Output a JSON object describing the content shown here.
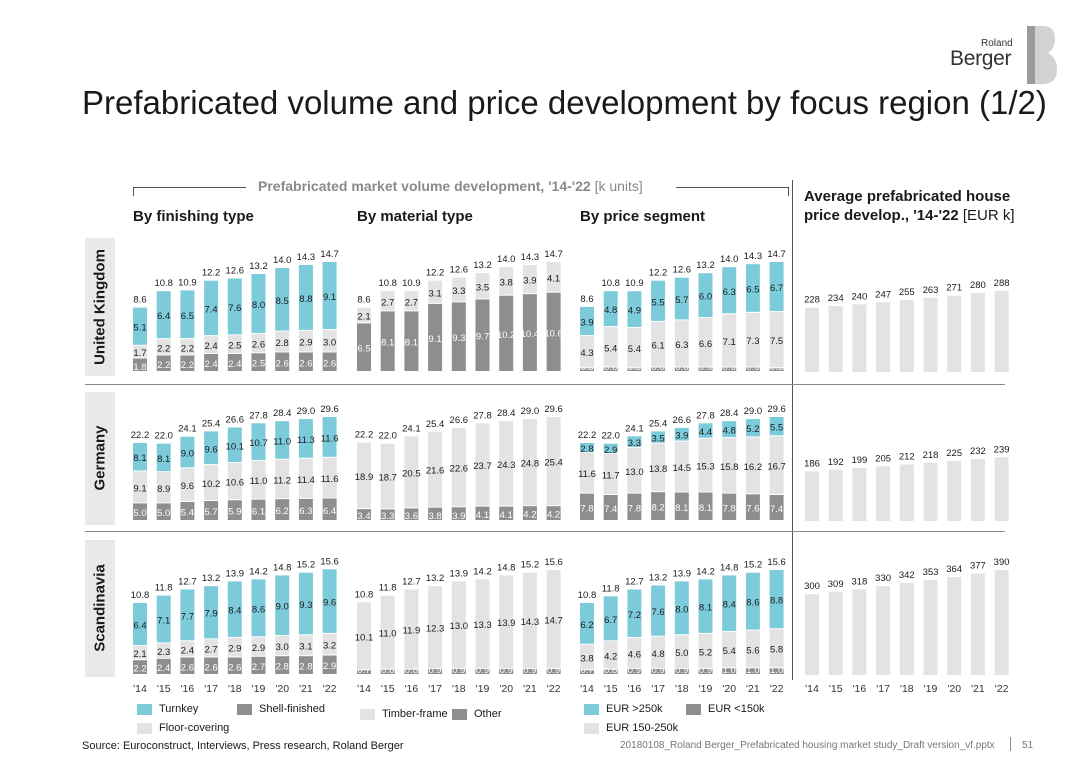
{
  "logo": {
    "top": "Roland",
    "bottom": "Berger"
  },
  "title": "Prefabricated volume and price development by focus region (1/2)",
  "volume_header": {
    "title": "Prefabricated market volume development, '14-'22",
    "unit": "[k units]"
  },
  "price_header": {
    "line1": "Average prefabricated house",
    "line2": "price develop., '14-'22",
    "unit": "[EUR k]"
  },
  "subheaders": {
    "finishing": "By finishing type",
    "material": "By material type",
    "price_segment": "By price segment"
  },
  "regions": [
    "United Kingdom",
    "Germany",
    "Scandinavia"
  ],
  "years": [
    "'14",
    "'15",
    "'16",
    "'17",
    "'18",
    "'19",
    "'20",
    "'21",
    "'22"
  ],
  "colors": {
    "cyan": "#7ccbdb",
    "light": "#e3e3e3",
    "dark": "#8e8e8e"
  },
  "legends": {
    "finishing": {
      "turnkey": "Turnkey",
      "shell": "Shell-finished",
      "floor": "Floor-covering"
    },
    "material": {
      "timber": "Timber-frame",
      "other": "Other"
    },
    "segment": {
      "high": "EUR >250k",
      "low": "EUR <150k",
      "mid": "EUR 150-250k"
    }
  },
  "source": "Source: Euroconstruct, Interviews, Press research, Roland Berger",
  "file": "20180108_Roland Berger_Prefabricated housing market study_Draft version_vf.pptx",
  "page": "51",
  "chart_data": [
    {
      "type": "bar",
      "stacked": true,
      "region": "United Kingdom",
      "panel": "By finishing type",
      "ylim": [
        0,
        14.7
      ],
      "categories": [
        "'14",
        "'15",
        "'16",
        "'17",
        "'18",
        "'19",
        "'20",
        "'21",
        "'22"
      ],
      "totals": [
        "8.6",
        "10.8",
        "10.9",
        "12.2",
        "12.6",
        "13.2",
        "14.0",
        "14.3",
        "14.7"
      ],
      "series": [
        {
          "name": "Shell-finished",
          "color": "dark",
          "values": [
            1.8,
            2.2,
            2.2,
            2.4,
            2.4,
            2.5,
            2.6,
            2.6,
            2.6
          ],
          "labels": [
            "1.8",
            "2.2",
            "2.2",
            "2.4",
            "2.4",
            "2.5",
            "2.6",
            "2.6",
            "2.6"
          ]
        },
        {
          "name": "Floor-covering",
          "color": "light",
          "values": [
            1.7,
            2.2,
            2.2,
            2.4,
            2.5,
            2.6,
            2.8,
            2.9,
            3.0
          ],
          "labels": [
            "1.7",
            "2.2",
            "2.2",
            "2.4",
            "2.5",
            "2.6",
            "2.8",
            "2.9",
            "3.0"
          ]
        },
        {
          "name": "Turnkey",
          "color": "cyan",
          "values": [
            5.1,
            6.4,
            6.5,
            7.4,
            7.6,
            8.0,
            8.5,
            8.8,
            9.1
          ],
          "labels": [
            "5.1",
            "6.4",
            "6.5",
            "7.4",
            "7.6",
            "8.0",
            "8.5",
            "8.8",
            "9.1"
          ]
        }
      ]
    },
    {
      "type": "bar",
      "stacked": true,
      "region": "United Kingdom",
      "panel": "By material type",
      "ylim": [
        0,
        14.7
      ],
      "categories": [
        "'14",
        "'15",
        "'16",
        "'17",
        "'18",
        "'19",
        "'20",
        "'21",
        "'22"
      ],
      "totals": [
        "8.6",
        "10.8",
        "10.9",
        "12.2",
        "12.6",
        "13.2",
        "14.0",
        "14.3",
        "14.7"
      ],
      "series": [
        {
          "name": "Other",
          "color": "dark",
          "values": [
            6.5,
            8.1,
            8.1,
            9.1,
            9.3,
            9.7,
            10.2,
            10.4,
            10.6
          ],
          "labels": [
            "6.5",
            "8.1",
            "8.1",
            "9.1",
            "9.3",
            "9.7",
            "10.2",
            "10.4",
            "10.6"
          ]
        },
        {
          "name": "Timber-frame",
          "color": "light",
          "values": [
            2.1,
            2.7,
            2.7,
            3.1,
            3.3,
            3.5,
            3.8,
            3.9,
            4.1
          ],
          "labels": [
            "2.1",
            "2.7",
            "2.7",
            "3.1",
            "3.3",
            "3.5",
            "3.8",
            "3.9",
            "4.1"
          ]
        }
      ]
    },
    {
      "type": "bar",
      "stacked": true,
      "region": "United Kingdom",
      "panel": "By price segment",
      "ylim": [
        0,
        14.7
      ],
      "categories": [
        "'14",
        "'15",
        "'16",
        "'17",
        "'18",
        "'19",
        "'20",
        "'21",
        "'22"
      ],
      "totals": [
        "8.6",
        "10.8",
        "10.9",
        "12.2",
        "12.6",
        "13.2",
        "14.0",
        "14.3",
        "14.7"
      ],
      "series": [
        {
          "name": "EUR <150k",
          "color": "dark",
          "values": [
            0.5,
            0.6,
            0.5,
            0.6,
            0.6,
            0.6,
            0.6,
            0.6,
            0.5
          ],
          "labels": [
            "0.5",
            "0.6",
            "0.5",
            "0.6",
            "0.6",
            "0.6",
            "0.6",
            "0.6",
            "0.5"
          ]
        },
        {
          "name": "EUR 150-250k",
          "color": "light",
          "values": [
            4.3,
            5.4,
            5.4,
            6.1,
            6.3,
            6.6,
            7.1,
            7.3,
            7.5
          ],
          "labels": [
            "4.3",
            "5.4",
            "5.4",
            "6.1",
            "6.3",
            "6.6",
            "7.1",
            "7.3",
            "7.5"
          ]
        },
        {
          "name": "EUR >250k",
          "color": "cyan",
          "values": [
            3.9,
            4.8,
            4.9,
            5.5,
            5.7,
            6.0,
            6.3,
            6.5,
            6.7
          ],
          "labels": [
            "3.9",
            "4.8",
            "4.9",
            "5.5",
            "5.7",
            "6.0",
            "6.3",
            "6.5",
            "6.7"
          ]
        }
      ]
    },
    {
      "type": "bar",
      "region": "United Kingdom",
      "panel": "Average price",
      "ylim": [
        0,
        390
      ],
      "categories": [
        "'14",
        "'15",
        "'16",
        "'17",
        "'18",
        "'19",
        "'20",
        "'21",
        "'22"
      ],
      "values": [
        228,
        234,
        240,
        247,
        255,
        263,
        271,
        280,
        288
      ],
      "labels": [
        "228",
        "234",
        "240",
        "247",
        "255",
        "263",
        "271",
        "280",
        "288"
      ]
    },
    {
      "type": "bar",
      "stacked": true,
      "region": "Germany",
      "panel": "By finishing type",
      "ylim": [
        0,
        29.6
      ],
      "categories": [
        "'14",
        "'15",
        "'16",
        "'17",
        "'18",
        "'19",
        "'20",
        "'21",
        "'22"
      ],
      "totals": [
        "22.2",
        "22.0",
        "24.1",
        "25.4",
        "26.6",
        "27.8",
        "28.4",
        "29.0",
        "29.6"
      ],
      "series": [
        {
          "name": "Shell-finished",
          "color": "dark",
          "values": [
            5.0,
            5.0,
            5.4,
            5.7,
            5.9,
            6.1,
            6.2,
            6.3,
            6.4
          ],
          "labels": [
            "5.0",
            "5.0",
            "5.4",
            "5.7",
            "5.9",
            "6.1",
            "6.2",
            "6.3",
            "6.4"
          ]
        },
        {
          "name": "Floor-covering",
          "color": "light",
          "values": [
            9.1,
            8.9,
            9.6,
            10.2,
            10.6,
            11.0,
            11.2,
            11.4,
            11.6
          ],
          "labels": [
            "9.1",
            "8.9",
            "9.6",
            "10.2",
            "10.6",
            "11.0",
            "11.2",
            "11.4",
            "11.6"
          ]
        },
        {
          "name": "Turnkey",
          "color": "cyan",
          "values": [
            8.1,
            8.1,
            9.0,
            9.6,
            10.1,
            10.7,
            11.0,
            11.3,
            11.6
          ],
          "labels": [
            "8.1",
            "8.1",
            "9.0",
            "9.6",
            "10.1",
            "10.7",
            "11.0",
            "11.3",
            "11.6"
          ]
        }
      ]
    },
    {
      "type": "bar",
      "stacked": true,
      "region": "Germany",
      "panel": "By material type",
      "ylim": [
        0,
        29.6
      ],
      "categories": [
        "'14",
        "'15",
        "'16",
        "'17",
        "'18",
        "'19",
        "'20",
        "'21",
        "'22"
      ],
      "totals": [
        "22.2",
        "22.0",
        "24.1",
        "25.4",
        "26.6",
        "27.8",
        "28.4",
        "29.0",
        "29.6"
      ],
      "series": [
        {
          "name": "Other",
          "color": "dark",
          "values": [
            3.4,
            3.3,
            3.6,
            3.8,
            3.9,
            4.1,
            4.1,
            4.2,
            4.2
          ],
          "labels": [
            "3.4",
            "3.3",
            "3.6",
            "3.8",
            "3.9",
            "4.1",
            "4.1",
            "4.2",
            "4.2"
          ]
        },
        {
          "name": "Timber-frame",
          "color": "light",
          "values": [
            18.9,
            18.7,
            20.5,
            21.6,
            22.6,
            23.7,
            24.3,
            24.8,
            25.4
          ],
          "labels": [
            "18.9",
            "18.7",
            "20.5",
            "21.6",
            "22.6",
            "23.7",
            "24.3",
            "24.8",
            "25.4"
          ]
        }
      ]
    },
    {
      "type": "bar",
      "stacked": true,
      "region": "Germany",
      "panel": "By price segment",
      "ylim": [
        0,
        29.6
      ],
      "categories": [
        "'14",
        "'15",
        "'16",
        "'17",
        "'18",
        "'19",
        "'20",
        "'21",
        "'22"
      ],
      "totals": [
        "22.2",
        "22.0",
        "24.1",
        "25.4",
        "26.6",
        "27.8",
        "28.4",
        "29.0",
        "29.6"
      ],
      "series": [
        {
          "name": "EUR <150k",
          "color": "dark",
          "values": [
            7.8,
            7.4,
            7.8,
            8.2,
            8.1,
            8.1,
            7.8,
            7.6,
            7.4
          ],
          "labels": [
            "7.8",
            "7.4",
            "7.8",
            "8.2",
            "8.1",
            "8.1",
            "7.8",
            "7.6",
            "7.4"
          ]
        },
        {
          "name": "EUR 150-250k",
          "color": "light",
          "values": [
            11.6,
            11.7,
            13.0,
            13.8,
            14.5,
            15.3,
            15.8,
            16.2,
            16.7
          ],
          "labels": [
            "11.6",
            "11.7",
            "13.0",
            "13.8",
            "14.5",
            "15.3",
            "15.8",
            "16.2",
            "16.7"
          ]
        },
        {
          "name": "EUR >250k",
          "color": "cyan",
          "values": [
            2.8,
            2.9,
            3.3,
            3.5,
            3.9,
            4.4,
            4.8,
            5.2,
            5.5
          ],
          "labels": [
            "2.8",
            "2.9",
            "3.3",
            "3.5",
            "3.9",
            "4.4",
            "4.8",
            "5.2",
            "5.5"
          ]
        }
      ]
    },
    {
      "type": "bar",
      "region": "Germany",
      "panel": "Average price",
      "ylim": [
        0,
        390
      ],
      "categories": [
        "'14",
        "'15",
        "'16",
        "'17",
        "'18",
        "'19",
        "'20",
        "'21",
        "'22"
      ],
      "values": [
        186,
        192,
        199,
        205,
        212,
        218,
        225,
        232,
        239
      ],
      "labels": [
        "186",
        "192",
        "199",
        "205",
        "212",
        "218",
        "225",
        "232",
        "239"
      ]
    },
    {
      "type": "bar",
      "stacked": true,
      "region": "Scandinavia",
      "panel": "By finishing type",
      "ylim": [
        0,
        15.6
      ],
      "categories": [
        "'14",
        "'15",
        "'16",
        "'17",
        "'18",
        "'19",
        "'20",
        "'21",
        "'22"
      ],
      "totals": [
        "10.8",
        "11.8",
        "12.7",
        "13.2",
        "13.9",
        "14.2",
        "14.8",
        "15.2",
        "15.6"
      ],
      "series": [
        {
          "name": "Shell-finished",
          "color": "dark",
          "values": [
            2.2,
            2.4,
            2.6,
            2.6,
            2.6,
            2.7,
            2.8,
            2.8,
            2.9
          ],
          "labels": [
            "2.2",
            "2.4",
            "2.6",
            "2.6",
            "2.6",
            "2.7",
            "2.8",
            "2.8",
            "2.9"
          ]
        },
        {
          "name": "Floor-covering",
          "color": "light",
          "values": [
            2.1,
            2.3,
            2.4,
            2.7,
            2.9,
            2.9,
            3.0,
            3.1,
            3.2
          ],
          "labels": [
            "2.1",
            "2.3",
            "2.4",
            "2.7",
            "2.9",
            "2.9",
            "3.0",
            "3.1",
            "3.2"
          ]
        },
        {
          "name": "Turnkey",
          "color": "cyan",
          "values": [
            6.4,
            7.1,
            7.7,
            7.9,
            8.4,
            8.6,
            9.0,
            9.3,
            9.6
          ],
          "labels": [
            "6.4",
            "7.1",
            "7.7",
            "7.9",
            "8.4",
            "8.6",
            "9.0",
            "9.3",
            "9.6"
          ]
        }
      ]
    },
    {
      "type": "bar",
      "stacked": true,
      "region": "Scandinavia",
      "panel": "By material type",
      "ylim": [
        0,
        15.6
      ],
      "categories": [
        "'14",
        "'15",
        "'16",
        "'17",
        "'18",
        "'19",
        "'20",
        "'21",
        "'22"
      ],
      "totals": [
        "10.8",
        "11.8",
        "12.7",
        "13.2",
        "13.9",
        "14.2",
        "14.8",
        "15.2",
        "15.6"
      ],
      "series": [
        {
          "name": "Other",
          "color": "dark",
          "values": [
            0.7,
            0.8,
            0.8,
            0.9,
            0.9,
            0.9,
            0.9,
            0.9,
            0.9
          ],
          "labels": [
            "0.7",
            "0.8",
            "0.8",
            "0.9",
            "0.9",
            "0.9",
            "0.9",
            "0.9",
            "0.9"
          ]
        },
        {
          "name": "Timber-frame",
          "color": "light",
          "values": [
            10.1,
            11.0,
            11.9,
            12.3,
            13.0,
            13.3,
            13.9,
            14.3,
            14.7
          ],
          "labels": [
            "10.1",
            "11.0",
            "11.9",
            "12.3",
            "13.0",
            "13.3",
            "13.9",
            "14.3",
            "14.7"
          ]
        }
      ]
    },
    {
      "type": "bar",
      "stacked": true,
      "region": "Scandinavia",
      "panel": "By price segment",
      "ylim": [
        0,
        15.6
      ],
      "categories": [
        "'14",
        "'15",
        "'16",
        "'17",
        "'18",
        "'19",
        "'20",
        "'21",
        "'22"
      ],
      "totals": [
        "10.8",
        "11.8",
        "12.7",
        "13.2",
        "13.9",
        "14.2",
        "14.8",
        "15.2",
        "15.6"
      ],
      "series": [
        {
          "name": "EUR <150k",
          "color": "dark",
          "values": [
            0.7,
            0.8,
            0.9,
            0.9,
            0.9,
            0.9,
            1.0,
            1.0,
            1.0
          ],
          "labels": [
            "0.7",
            "0.8",
            "0.9",
            "0.9",
            "0.9",
            "0.9",
            "1.0",
            "1.0",
            "1.0"
          ]
        },
        {
          "name": "EUR 150-250k",
          "color": "light",
          "values": [
            3.8,
            4.2,
            4.6,
            4.8,
            5.0,
            5.2,
            5.4,
            5.6,
            5.8
          ],
          "labels": [
            "3.8",
            "4.2",
            "4.6",
            "4.8",
            "5.0",
            "5.2",
            "5.4",
            "5.6",
            "5.8"
          ]
        },
        {
          "name": "EUR >250k",
          "color": "cyan",
          "values": [
            6.2,
            6.7,
            7.2,
            7.6,
            8.0,
            8.1,
            8.4,
            8.6,
            8.8
          ],
          "labels": [
            "6.2",
            "6.7",
            "7.2",
            "7.6",
            "8.0",
            "8.1",
            "8.4",
            "8.6",
            "8.8"
          ]
        }
      ]
    },
    {
      "type": "bar",
      "region": "Scandinavia",
      "panel": "Average price",
      "ylim": [
        0,
        390
      ],
      "categories": [
        "'14",
        "'15",
        "'16",
        "'17",
        "'18",
        "'19",
        "'20",
        "'21",
        "'22"
      ],
      "values": [
        300,
        309,
        318,
        330,
        342,
        353,
        364,
        377,
        390
      ],
      "labels": [
        "300",
        "309",
        "318",
        "330",
        "342",
        "353",
        "364",
        "377",
        "390"
      ]
    }
  ]
}
